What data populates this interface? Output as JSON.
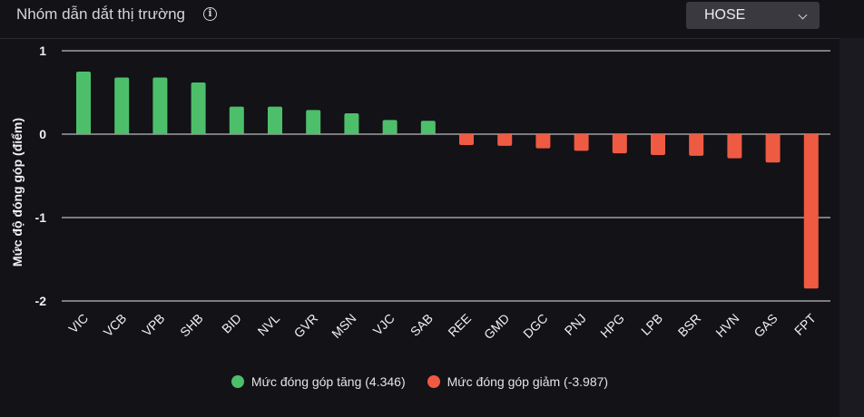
{
  "header": {
    "title": "Nhóm dẫn dắt thị trường",
    "info_icon": "info-icon",
    "exchange_select": {
      "value": "HOSE",
      "icon": "chevron-down-icon"
    }
  },
  "colors": {
    "positive": "#4dbf6b",
    "negative": "#ef5a43",
    "grid": "#e6e6e6",
    "background": "#131217"
  },
  "chart_data": {
    "type": "bar",
    "ylabel": "Mức độ đóng góp (điểm)",
    "ylim": [
      -2.15,
      1.0
    ],
    "yticks": [
      1,
      0,
      -1,
      -2
    ],
    "categories": [
      "VIC",
      "VCB",
      "VPB",
      "SHB",
      "BID",
      "NVL",
      "GVR",
      "MSN",
      "VJC",
      "SAB",
      "REE",
      "GMD",
      "DGC",
      "PNJ",
      "HPG",
      "LPB",
      "BSR",
      "HVN",
      "GAS",
      "FPT"
    ],
    "values": [
      0.75,
      0.68,
      0.68,
      0.62,
      0.33,
      0.33,
      0.29,
      0.25,
      0.17,
      0.16,
      -0.13,
      -0.14,
      -0.17,
      -0.2,
      -0.23,
      -0.25,
      -0.26,
      -0.29,
      -0.34,
      -1.85
    ],
    "grid": true,
    "legend_position": "bottom-center",
    "legend": [
      {
        "label": "Mức đóng góp tăng (4.346)",
        "color": "#4dbf6b"
      },
      {
        "label": "Mức đóng góp giảm (-3.987)",
        "color": "#ef5a43"
      }
    ]
  }
}
